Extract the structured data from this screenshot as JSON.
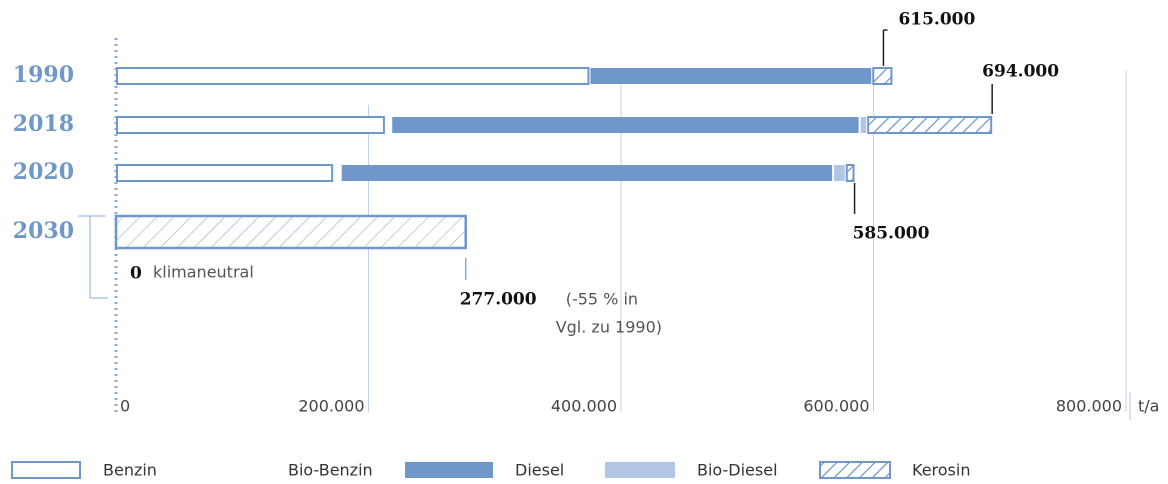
{
  "chart_data": {
    "type": "bar",
    "orientation": "horizontal",
    "stacked": true,
    "categories": [
      "1990",
      "2018",
      "2020",
      "2030"
    ],
    "series": [
      {
        "name": "Benzin",
        "color": "#ffffff",
        "border": "#6f97c9",
        "values": [
          375000,
          213000,
          172000,
          null
        ]
      },
      {
        "name": "Bio-Benzin",
        "color": "#ffffff",
        "values": [
          0,
          5000,
          6000,
          null
        ]
      },
      {
        "name": "Diesel",
        "color": "#6f97c9",
        "values": [
          224000,
          371000,
          390000,
          null
        ]
      },
      {
        "name": "Bio-Diesel",
        "color": "#b3c5e5",
        "values": [
          0,
          6000,
          10000,
          null
        ]
      },
      {
        "name": "Kerosin",
        "color": "#6f97c9",
        "pattern": "hatch",
        "values": [
          16000,
          99000,
          7000,
          null
        ]
      }
    ],
    "totals": [
      {
        "value": 615000,
        "label": "615.000"
      },
      {
        "value": 694000,
        "label": "694.000"
      },
      {
        "value": 585000,
        "label": "585.000"
      },
      {
        "value": 277000,
        "label": "277.000"
      }
    ],
    "target_note": [
      "(-55 % in",
      "Vgl. zu 1990)"
    ],
    "zero_label": {
      "value": 0,
      "label": "0"
    },
    "zero_note": "klimaneutral",
    "xlim": [
      0,
      800000
    ],
    "xticks": [
      {
        "value": 0,
        "label": "0"
      },
      {
        "value": 200000,
        "label": "200.000"
      },
      {
        "value": 400000,
        "label": "400.000"
      },
      {
        "value": 600000,
        "label": "600.000"
      },
      {
        "value": 800000,
        "label": "800.000"
      }
    ],
    "unit": "t/a",
    "grid": true
  }
}
